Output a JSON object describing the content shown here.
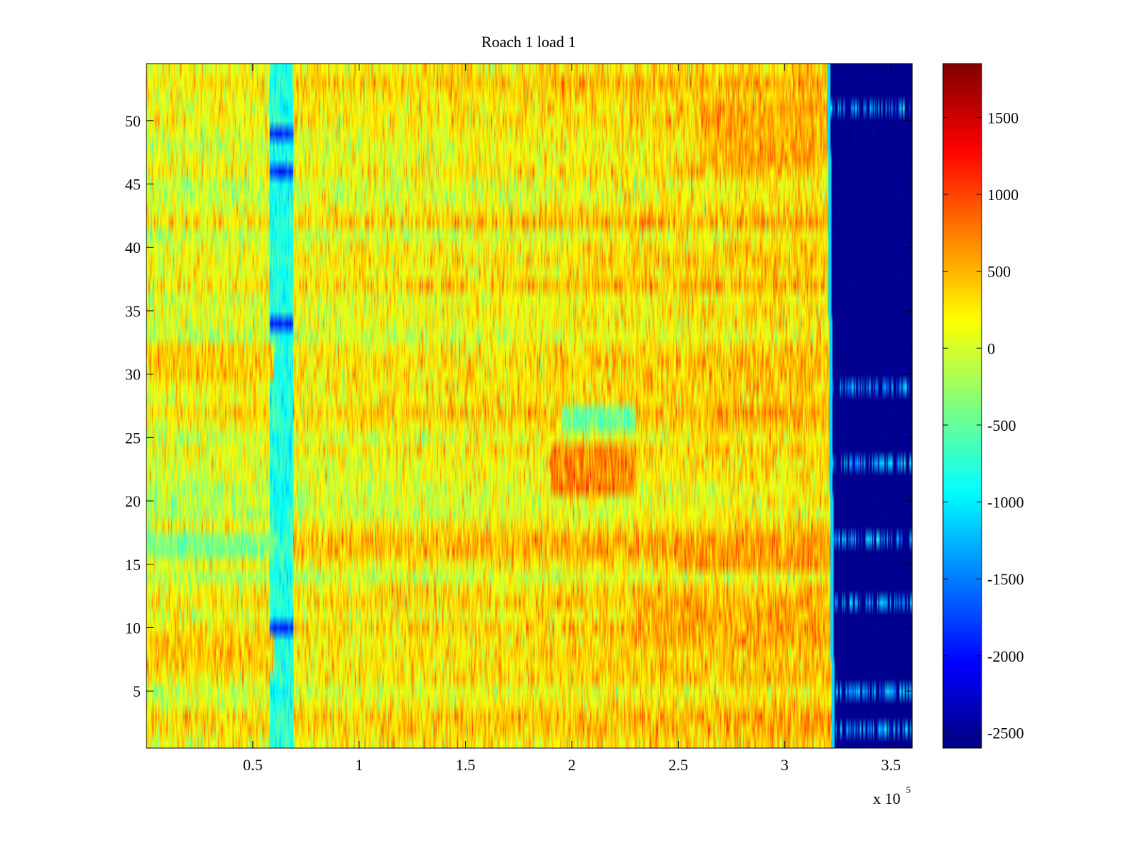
{
  "chart_data": {
    "type": "heatmap",
    "title": "Roach 1 load 1",
    "xlabel": "",
    "ylabel": "",
    "x_exponent_label": "x 10",
    "x_exponent_power": "5",
    "xlim": [
      0,
      3.6
    ],
    "ylim": [
      0.5,
      54.5
    ],
    "x_ticks": [
      0.5,
      1,
      1.5,
      2,
      2.5,
      3,
      3.5
    ],
    "x_tick_labels": [
      "0.5",
      "1",
      "1.5",
      "2",
      "2.5",
      "3",
      "3.5"
    ],
    "y_ticks": [
      5,
      10,
      15,
      20,
      25,
      30,
      35,
      40,
      45,
      50
    ],
    "y_tick_labels": [
      "5",
      "10",
      "15",
      "20",
      "25",
      "30",
      "35",
      "40",
      "45",
      "50"
    ],
    "rows": 54,
    "colormap": "jet",
    "clim": [
      -2600,
      1850
    ],
    "colorbar": {
      "ticks": [
        1500,
        1000,
        500,
        0,
        -500,
        -1000,
        -1500,
        -2000,
        -2500
      ],
      "tick_labels": [
        "1500",
        "1000",
        "500",
        "0",
        "-500",
        "-1000",
        "-1500",
        "-2000",
        "-2500"
      ]
    },
    "regions": {
      "cutoff_x_bottom": 3.22,
      "cutoff_x_top": 3.2,
      "cutoff_value": -2550,
      "stripe_x_range": [
        0.58,
        0.69
      ],
      "stripe_value": -800,
      "dark_stripe_rows": [
        10,
        34,
        46,
        49
      ],
      "hot_zones": [
        {
          "x_range": [
            1.9,
            2.3
          ],
          "row_range": [
            21,
            24
          ],
          "value": 700
        },
        {
          "x_range": [
            2.5,
            3.2
          ],
          "row_range": [
            15,
            17
          ],
          "value": 600
        },
        {
          "x_range": [
            2.3,
            3.2
          ],
          "row_range": [
            9,
            12
          ],
          "value": 550
        },
        {
          "x_range": [
            2.6,
            3.2
          ],
          "row_range": [
            47,
            51
          ],
          "value": 550
        },
        {
          "x_range": [
            0,
            0.6
          ],
          "row_range": [
            7,
            9
          ],
          "value": 400
        },
        {
          "x_range": [
            0,
            0.6
          ],
          "row_range": [
            30,
            32
          ],
          "value": 400
        }
      ],
      "cool_zones": [
        {
          "x_range": [
            1.95,
            2.3
          ],
          "row_range": [
            26,
            27
          ],
          "value": -450
        },
        {
          "x_range": [
            0,
            0.6
          ],
          "row_range": [
            16,
            17
          ],
          "value": -400
        }
      ],
      "right_residual_rows": [
        2,
        5,
        12,
        17,
        23,
        29,
        51
      ],
      "right_residual_value": -1300
    }
  }
}
